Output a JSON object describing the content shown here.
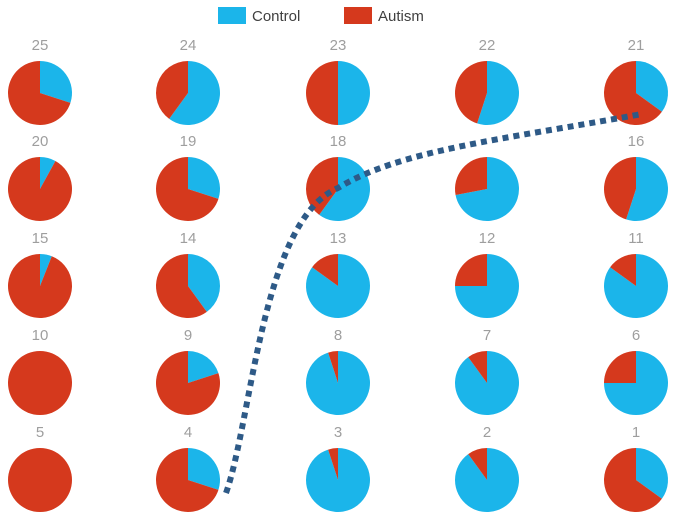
{
  "colors": {
    "control": "#1bb5ea",
    "autism": "#d5391d",
    "divider": "#2e5a87",
    "panel_label": "#9e9e9e"
  },
  "chart_data": {
    "type": "pie",
    "legend": {
      "position": "top",
      "entries": [
        "Control",
        "Autism"
      ]
    },
    "series_names": [
      "Control",
      "Autism"
    ],
    "panels": [
      {
        "label": "25",
        "control": 0.3,
        "autism": 0.7
      },
      {
        "label": "24",
        "control": 0.6,
        "autism": 0.4
      },
      {
        "label": "23",
        "control": 0.5,
        "autism": 0.5
      },
      {
        "label": "22",
        "control": 0.55,
        "autism": 0.45
      },
      {
        "label": "21",
        "control": 0.35,
        "autism": 0.65
      },
      {
        "label": "20",
        "control": 0.08,
        "autism": 0.92
      },
      {
        "label": "19",
        "control": 0.3,
        "autism": 0.7
      },
      {
        "label": "18",
        "control": 0.6,
        "autism": 0.4
      },
      {
        "label": "",
        "control": 0.72,
        "autism": 0.28
      },
      {
        "label": "16",
        "control": 0.55,
        "autism": 0.45
      },
      {
        "label": "15",
        "control": 0.06,
        "autism": 0.94
      },
      {
        "label": "14",
        "control": 0.4,
        "autism": 0.6
      },
      {
        "label": "13",
        "control": 0.85,
        "autism": 0.15
      },
      {
        "label": "12",
        "control": 0.75,
        "autism": 0.25
      },
      {
        "label": "11",
        "control": 0.85,
        "autism": 0.15
      },
      {
        "label": "10",
        "control": 0.0,
        "autism": 1.0
      },
      {
        "label": "9",
        "control": 0.2,
        "autism": 0.8
      },
      {
        "label": "8",
        "control": 0.95,
        "autism": 0.05
      },
      {
        "label": "7",
        "control": 0.9,
        "autism": 0.1
      },
      {
        "label": "6",
        "control": 0.75,
        "autism": 0.25
      },
      {
        "label": "5",
        "control": 0.0,
        "autism": 1.0
      },
      {
        "label": "4",
        "control": 0.3,
        "autism": 0.7
      },
      {
        "label": "3",
        "control": 0.95,
        "autism": 0.05
      },
      {
        "label": "2",
        "control": 0.9,
        "autism": 0.1
      },
      {
        "label": "1",
        "control": 0.35,
        "autism": 0.65
      }
    ]
  }
}
